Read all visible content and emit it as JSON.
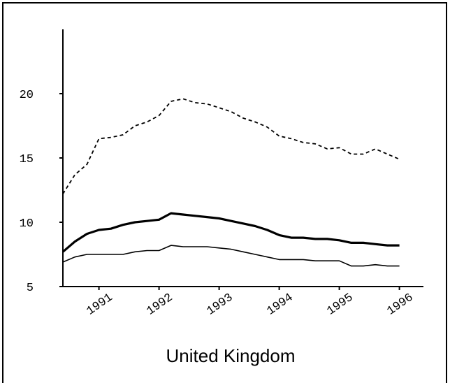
{
  "chart_data": {
    "type": "line",
    "title": "United Kingdom",
    "x": [
      1990.4,
      1990.6,
      1990.8,
      1991.0,
      1991.2,
      1991.4,
      1991.6,
      1991.8,
      1992.0,
      1992.2,
      1992.4,
      1992.6,
      1992.8,
      1993.0,
      1993.2,
      1993.4,
      1993.6,
      1993.8,
      1994.0,
      1994.2,
      1994.4,
      1994.6,
      1994.8,
      1995.0,
      1995.2,
      1995.4,
      1995.6,
      1995.8,
      1996.0
    ],
    "series": [
      {
        "color": "#000000",
        "style": "dashed",
        "values": [
          12.2,
          13.7,
          14.5,
          16.5,
          16.6,
          16.8,
          17.5,
          17.8,
          18.3,
          19.4,
          19.6,
          19.3,
          19.2,
          18.9,
          18.6,
          18.1,
          17.8,
          17.4,
          16.7,
          16.5,
          16.2,
          16.1,
          15.7,
          15.8,
          15.3,
          15.3,
          15.7,
          15.3,
          14.9
        ]
      },
      {
        "color": "#000000",
        "style": "thick",
        "values": [
          7.7,
          8.5,
          9.1,
          9.4,
          9.5,
          9.8,
          10.0,
          10.1,
          10.2,
          10.7,
          10.6,
          10.5,
          10.4,
          10.3,
          10.1,
          9.9,
          9.7,
          9.4,
          9.0,
          8.8,
          8.8,
          8.7,
          8.7,
          8.6,
          8.4,
          8.4,
          8.3,
          8.2,
          8.2
        ]
      },
      {
        "color": "#000000",
        "style": "thin",
        "values": [
          6.9,
          7.3,
          7.5,
          7.5,
          7.5,
          7.5,
          7.7,
          7.8,
          7.8,
          8.2,
          8.1,
          8.1,
          8.1,
          8.0,
          7.9,
          7.7,
          7.5,
          7.3,
          7.1,
          7.1,
          7.1,
          7.0,
          7.0,
          7.0,
          6.6,
          6.6,
          6.7,
          6.6,
          6.6
        ]
      }
    ],
    "xlim": [
      1990.4,
      1996.4
    ],
    "xticks": [
      1991,
      1992,
      1993,
      1994,
      1995,
      1996
    ],
    "ylim": [
      5,
      25
    ],
    "yticks": [
      5,
      10,
      15,
      20
    ]
  }
}
